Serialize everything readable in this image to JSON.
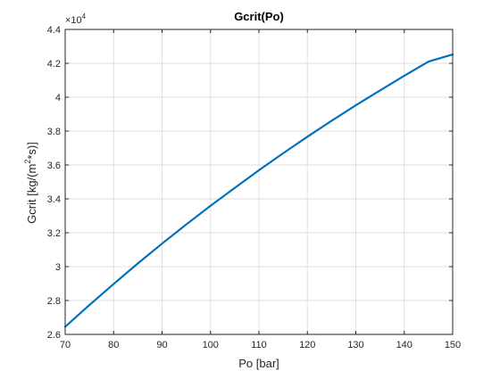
{
  "chart_data": {
    "type": "line",
    "title": "Gcrit(Po)",
    "xlabel": "Po [bar]",
    "ylabel_main": "Gcrit [kg/(m",
    "ylabel_sup": "2",
    "ylabel_tail": "*s)]",
    "y_exponent_base": "×10",
    "y_exponent_power": "4",
    "xlim": [
      70,
      150
    ],
    "ylim": [
      26000,
      44000
    ],
    "xticks": [
      70,
      80,
      90,
      100,
      110,
      120,
      130,
      140,
      150
    ],
    "xtick_labels": [
      "70",
      "80",
      "90",
      "100",
      "110",
      "120",
      "130",
      "140",
      "150"
    ],
    "yticks": [
      26000,
      28000,
      30000,
      32000,
      34000,
      36000,
      38000,
      40000,
      42000,
      44000
    ],
    "ytick_labels": [
      "2.6",
      "2.8",
      "3",
      "3.2",
      "3.4",
      "3.6",
      "3.8",
      "4",
      "4.2",
      "4.4"
    ],
    "grid": true,
    "series": [
      {
        "color": "#0072BD",
        "x": [
          70,
          75,
          80,
          85,
          90,
          95,
          100,
          105,
          110,
          115,
          120,
          125,
          130,
          135,
          140,
          145,
          150
        ],
        "y": [
          26450,
          27730,
          28980,
          30190,
          31360,
          32490,
          33590,
          34650,
          35690,
          36690,
          37670,
          38610,
          39520,
          40400,
          41270,
          42100,
          42520
        ]
      }
    ]
  }
}
